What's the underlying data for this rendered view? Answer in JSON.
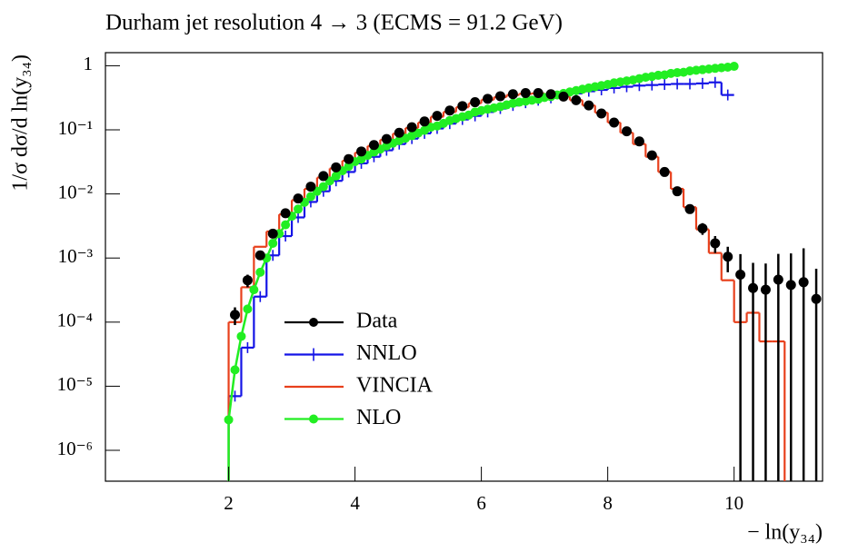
{
  "chart_data": {
    "type": "line",
    "title": "Durham jet resolution 4 → 3 (ECMS = 91.2 GeV)",
    "y_label": "1/σ dσ/d ln(y₃₄)",
    "x_label": "− ln(y₃₄)",
    "log_y": true,
    "legend": "lower left",
    "xlim": [
      0.05,
      11.4
    ],
    "xticks": [
      2,
      4,
      6,
      8,
      10
    ],
    "ylim": [
      3.3e-07,
      1.6
    ],
    "yticks": [
      1,
      {
        "value": 0.1,
        "label": "10⁻¹"
      },
      {
        "value": 0.01,
        "label": "10⁻²"
      },
      {
        "value": 0.001,
        "label": "10⁻³"
      },
      {
        "value": 0.0001,
        "label": "10⁻⁴"
      },
      {
        "value": 1e-05,
        "label": "10⁻⁵"
      },
      {
        "value": 1e-06,
        "label": "10⁻⁶"
      }
    ],
    "series": [
      {
        "name": "Data",
        "color": "#000000",
        "style": "points",
        "x": [
          2.1,
          2.3,
          2.5,
          2.7,
          2.9,
          3.1,
          3.3,
          3.5,
          3.7,
          3.9,
          4.1,
          4.3,
          4.5,
          4.7,
          4.9,
          5.1,
          5.3,
          5.5,
          5.7,
          5.9,
          6.1,
          6.3,
          6.5,
          6.7,
          6.9,
          7.1,
          7.3,
          7.5,
          7.7,
          7.9,
          8.1,
          8.3,
          8.5,
          8.7,
          8.9,
          9.1,
          9.3,
          9.5,
          9.7,
          9.9,
          10.1,
          10.3,
          10.5,
          10.7,
          10.9,
          11.1,
          11.3
        ],
        "values": [
          0.00013,
          0.00045,
          0.0011,
          0.0024,
          0.005,
          0.0085,
          0.013,
          0.019,
          0.026,
          0.035,
          0.046,
          0.058,
          0.072,
          0.09,
          0.11,
          0.135,
          0.165,
          0.2,
          0.235,
          0.27,
          0.305,
          0.335,
          0.36,
          0.375,
          0.375,
          0.36,
          0.33,
          0.29,
          0.24,
          0.18,
          0.13,
          0.095,
          0.066,
          0.04,
          0.022,
          0.011,
          0.0058,
          0.0029,
          0.0017,
          0.00105,
          0.00055,
          0.00034,
          0.00032,
          0.00046,
          0.00038,
          0.00042,
          0.00023
        ],
        "errors": [
          4e-05,
          0.0001,
          0.00015,
          0.0002,
          0.0003,
          0.0004,
          0.0005,
          0.0006,
          0.0007,
          0.0008,
          0.001,
          0.001,
          0.001,
          0.001,
          0.001,
          0.001,
          0.001,
          0.001,
          0.001,
          0.001,
          0.001,
          0.001,
          0.001,
          0.001,
          0.001,
          0.001,
          0.001,
          0.001,
          0.001,
          0.001,
          0.001,
          0.001,
          0.001,
          0.001,
          0.001,
          0.001,
          0.0008,
          0.0006,
          0.0005,
          0.00045,
          0.0006,
          0.0005,
          0.0005,
          0.0007,
          0.0008,
          0.001,
          0.00045
        ]
      },
      {
        "name": "NNLO",
        "color": "#1414e6",
        "style": "step-cross",
        "bins": [
          2.0,
          2.2,
          2.4,
          2.6,
          2.8,
          3.0,
          3.2,
          3.4,
          3.6,
          3.8,
          4.0,
          4.2,
          4.4,
          4.6,
          4.8,
          5.0,
          5.2,
          5.4,
          5.6,
          5.8,
          6.0,
          6.2,
          6.4,
          6.6,
          6.8,
          7.0,
          7.2,
          7.4,
          7.6,
          7.8,
          8.0,
          8.2,
          8.4,
          8.6,
          8.8,
          9.0,
          9.2,
          9.4,
          9.6,
          9.8,
          10.0
        ],
        "values": [
          7e-06,
          4e-05,
          0.00025,
          0.0011,
          0.0022,
          0.0043,
          0.0075,
          0.011,
          0.016,
          0.022,
          0.03,
          0.038,
          0.048,
          0.06,
          0.073,
          0.088,
          0.105,
          0.125,
          0.145,
          0.165,
          0.19,
          0.215,
          0.24,
          0.265,
          0.29,
          0.315,
          0.34,
          0.37,
          0.4,
          0.42,
          0.45,
          0.47,
          0.49,
          0.5,
          0.51,
          0.52,
          0.52,
          0.53,
          0.55,
          0.35
        ]
      },
      {
        "name": "VINCIA",
        "color": "#e8401c",
        "style": "step",
        "bins": [
          2.0,
          2.2,
          2.4,
          2.6,
          2.8,
          3.0,
          3.2,
          3.4,
          3.6,
          3.8,
          4.0,
          4.2,
          4.4,
          4.6,
          4.8,
          5.0,
          5.2,
          5.4,
          5.6,
          5.8,
          6.0,
          6.2,
          6.4,
          6.6,
          6.8,
          7.0,
          7.2,
          7.4,
          7.6,
          7.8,
          8.0,
          8.2,
          8.4,
          8.6,
          8.8,
          9.0,
          9.2,
          9.4,
          9.6,
          9.8,
          10.0,
          10.2,
          10.4,
          10.6,
          10.8
        ],
        "values": [
          0.0001,
          0.00035,
          0.0015,
          0.0026,
          0.0048,
          0.008,
          0.012,
          0.018,
          0.025,
          0.033,
          0.044,
          0.056,
          0.07,
          0.087,
          0.107,
          0.13,
          0.16,
          0.19,
          0.225,
          0.26,
          0.295,
          0.325,
          0.35,
          0.365,
          0.37,
          0.36,
          0.33,
          0.29,
          0.24,
          0.185,
          0.13,
          0.09,
          0.06,
          0.038,
          0.022,
          0.012,
          0.0062,
          0.0028,
          0.0012,
          0.00045,
          0.0001,
          0.00014,
          5e-05,
          5e-05
        ]
      },
      {
        "name": "NLO",
        "color": "#22ee22",
        "style": "line-dots",
        "x": [
          2.0,
          2.1,
          2.2,
          2.3,
          2.4,
          2.5,
          2.6,
          2.7,
          2.8,
          2.9,
          3.0,
          3.1,
          3.2,
          3.3,
          3.4,
          3.5,
          3.6,
          3.7,
          3.8,
          3.9,
          4.0,
          4.1,
          4.2,
          4.3,
          4.4,
          4.5,
          4.6,
          4.7,
          4.8,
          4.9,
          5.0,
          5.1,
          5.2,
          5.3,
          5.4,
          5.5,
          5.6,
          5.7,
          5.8,
          5.9,
          6.0,
          6.1,
          6.2,
          6.3,
          6.4,
          6.5,
          6.6,
          6.7,
          6.8,
          6.9,
          7.0,
          7.1,
          7.2,
          7.3,
          7.4,
          7.5,
          7.6,
          7.7,
          7.8,
          7.9,
          8.0,
          8.1,
          8.2,
          8.3,
          8.4,
          8.5,
          8.6,
          8.7,
          8.8,
          8.9,
          9.0,
          9.1,
          9.2,
          9.3,
          9.4,
          9.5,
          9.6,
          9.7,
          9.8,
          9.9,
          10.0
        ],
        "values": [
          3e-06,
          1.8e-05,
          6e-05,
          0.00016,
          0.00032,
          0.0006,
          0.001,
          0.0017,
          0.0024,
          0.0033,
          0.0045,
          0.0058,
          0.0074,
          0.0091,
          0.011,
          0.013,
          0.016,
          0.019,
          0.023,
          0.027,
          0.032,
          0.035,
          0.04,
          0.045,
          0.05,
          0.056,
          0.062,
          0.068,
          0.074,
          0.081,
          0.089,
          0.098,
          0.11,
          0.115,
          0.126,
          0.14,
          0.15,
          0.16,
          0.17,
          0.19,
          0.2,
          0.21,
          0.22,
          0.23,
          0.245,
          0.26,
          0.27,
          0.28,
          0.29,
          0.3,
          0.32,
          0.33,
          0.35,
          0.37,
          0.39,
          0.41,
          0.43,
          0.45,
          0.47,
          0.49,
          0.51,
          0.54,
          0.56,
          0.58,
          0.6,
          0.63,
          0.66,
          0.68,
          0.71,
          0.72,
          0.76,
          0.78,
          0.79,
          0.83,
          0.85,
          0.87,
          0.89,
          0.91,
          0.93,
          0.95,
          0.98
        ]
      }
    ]
  }
}
